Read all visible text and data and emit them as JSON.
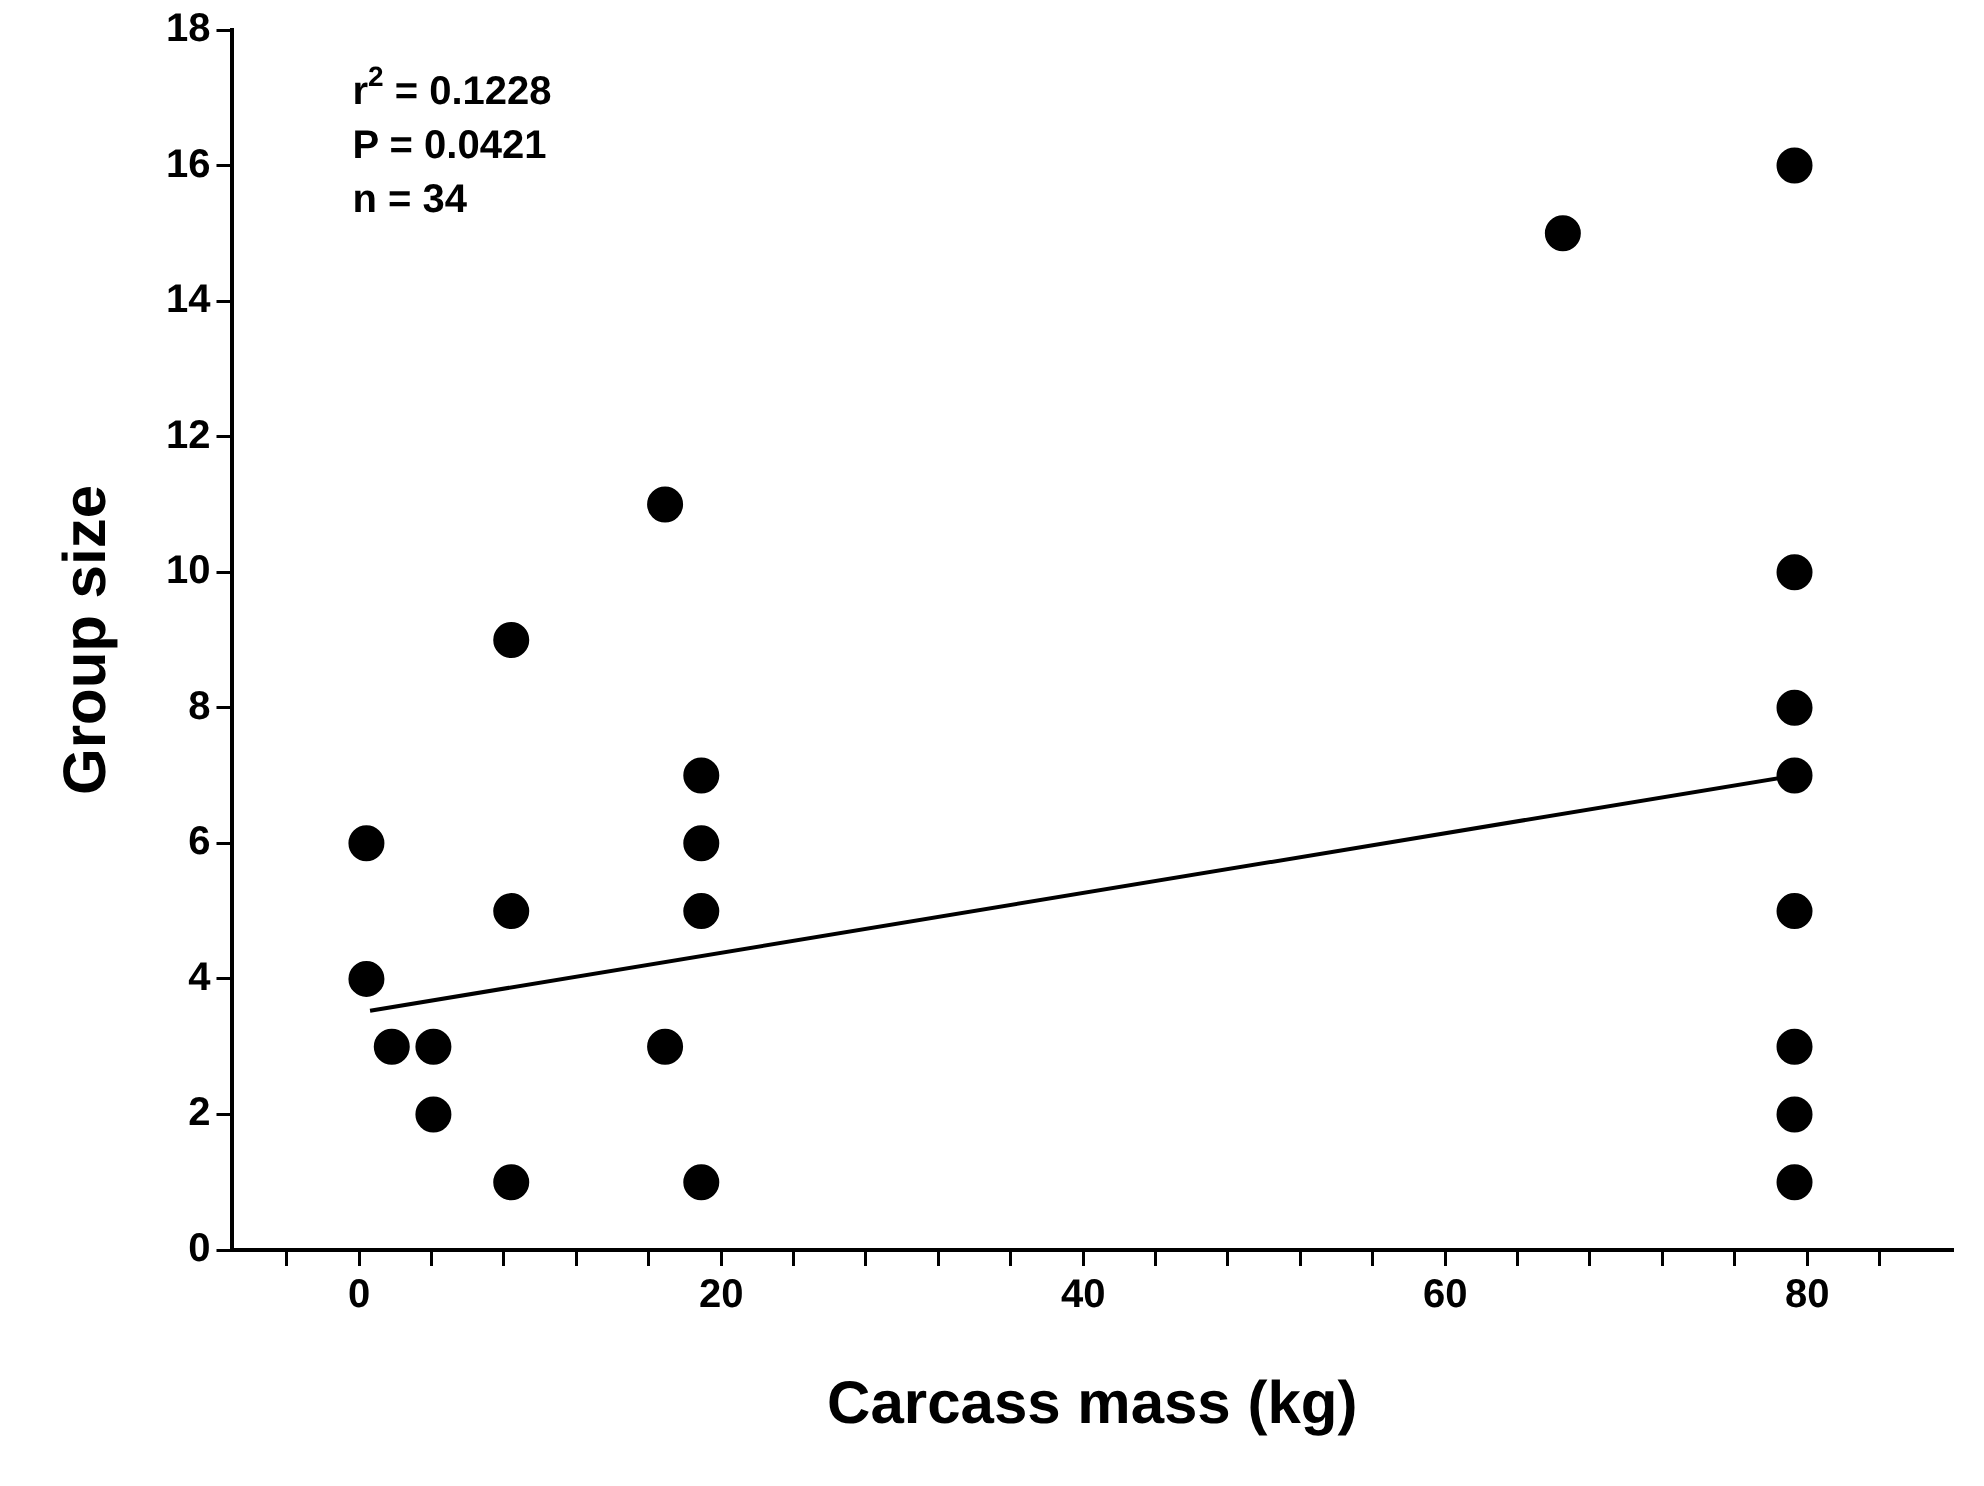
{
  "chart_data": {
    "type": "scatter",
    "xlabel": "Carcass mass (kg)",
    "ylabel": "Group size",
    "xlim": [
      -7,
      88
    ],
    "ylim": [
      0,
      18
    ],
    "xticks": [
      {
        "value": -4,
        "label": null
      },
      0,
      {
        "value": 4,
        "label": null
      },
      {
        "value": 8,
        "label": null
      },
      {
        "value": 12,
        "label": null
      },
      {
        "value": 16,
        "label": null
      },
      20,
      {
        "value": 24,
        "label": null
      },
      {
        "value": 28,
        "label": null
      },
      {
        "value": 32,
        "label": null
      },
      {
        "value": 36,
        "label": null
      },
      40,
      {
        "value": 44,
        "label": null
      },
      {
        "value": 48,
        "label": null
      },
      {
        "value": 52,
        "label": null
      },
      {
        "value": 56,
        "label": null
      },
      60,
      {
        "value": 64,
        "label": null
      },
      {
        "value": 68,
        "label": null
      },
      {
        "value": 72,
        "label": null
      },
      {
        "value": 76,
        "label": null
      },
      80,
      {
        "value": 84,
        "label": null
      }
    ],
    "yticks": [
      0,
      2,
      4,
      6,
      8,
      10,
      12,
      14,
      16,
      18
    ],
    "marker": "circle",
    "grid": false,
    "legend": false,
    "annotations": [
      "r$^{2}$ = 0.1228",
      "P = 0.0421",
      "n = 34"
    ],
    "series": [
      {
        "color": "#000000",
        "x": [
          0.4,
          0.4,
          1.8,
          4.1,
          4.1,
          8.4,
          8.4,
          8.4,
          16.9,
          16.9,
          18.9,
          18.9,
          18.9,
          18.9,
          66.5,
          79.3,
          79.3,
          79.3,
          79.3,
          79.3,
          79.3,
          79.3,
          79.3
        ],
        "values": [
          6,
          4,
          3,
          3,
          2,
          9,
          5,
          1,
          11,
          3,
          7,
          6,
          5,
          1,
          15,
          16,
          10,
          8,
          7,
          5,
          3,
          2,
          1
        ]
      },
      {
        "type": "line",
        "color": "#000000",
        "marker": "none",
        "line_style": "solid",
        "x": [
          0.6,
          79.3
        ],
        "values": [
          3.53,
          7.0
        ]
      }
    ]
  }
}
